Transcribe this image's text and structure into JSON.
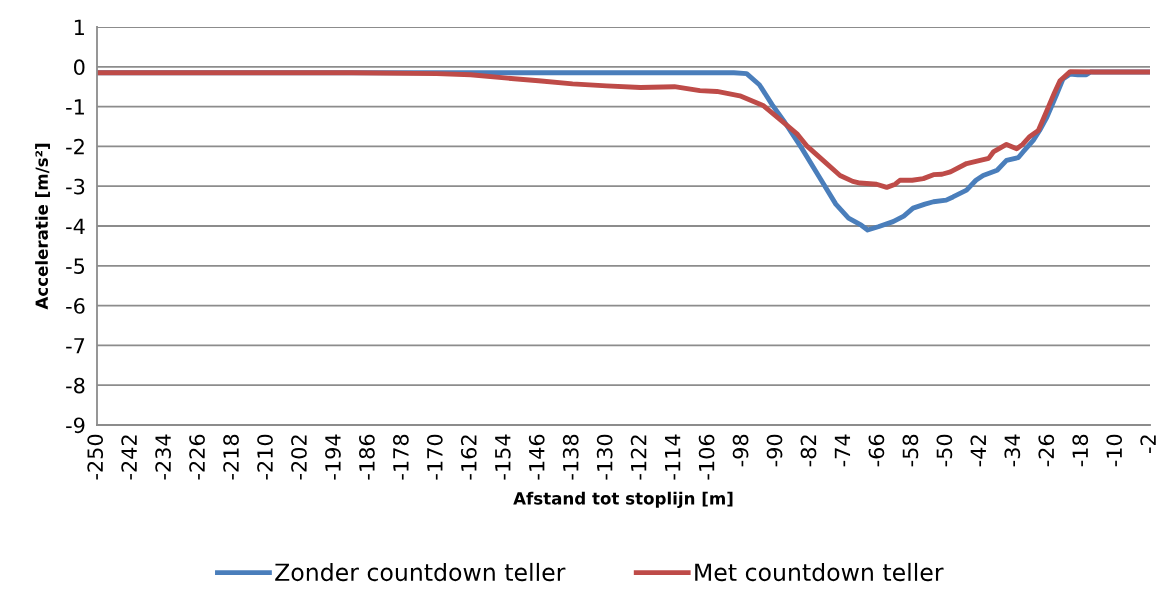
{
  "chart_data": {
    "type": "line",
    "xlabel": "Afstand tot stoplijn [m]",
    "ylabel": "Acceleratie [m/s²]",
    "xlim": [
      -250,
      -2
    ],
    "xticks": [
      -250,
      -242,
      -234,
      -226,
      -218,
      -210,
      -202,
      -194,
      -186,
      -178,
      -170,
      -162,
      -154,
      -146,
      -138,
      -130,
      -122,
      -114,
      -106,
      -98,
      -90,
      -82,
      -74,
      -66,
      -58,
      -50,
      -42,
      -34,
      -26,
      -18,
      -10,
      -2
    ],
    "ylim": [
      -9,
      1
    ],
    "yticks": [
      -9,
      -8,
      -7,
      -6,
      -5,
      -4,
      -3,
      -2,
      -1,
      0,
      1
    ],
    "grid": "y",
    "legend": "bottom",
    "marker": "none",
    "line_style": "solid",
    "series": [
      {
        "name": "Zonder countdown teller",
        "color": "#4a7ebb",
        "x": [
          -250,
          -150,
          -120,
          -100,
          -97,
          -94,
          -91,
          -88,
          -84,
          -80,
          -76,
          -73,
          -70,
          -68.5,
          -66,
          -62.5,
          -60,
          -57.8,
          -55,
          -53,
          -50,
          -48.4,
          -45.2,
          -43,
          -41.3,
          -38,
          -35.8,
          -33,
          -31.9,
          -29.5,
          -28,
          -26.3,
          -24,
          -22.5,
          -20.8,
          -19,
          -17,
          -16,
          -10,
          -2
        ],
        "values": [
          -0.15,
          -0.15,
          -0.15,
          -0.15,
          -0.17,
          -0.45,
          -0.95,
          -1.4,
          -2.05,
          -2.75,
          -3.45,
          -3.8,
          -3.98,
          -4.1,
          -4.02,
          -3.89,
          -3.75,
          -3.55,
          -3.45,
          -3.39,
          -3.35,
          -3.27,
          -3.1,
          -2.85,
          -2.73,
          -2.6,
          -2.35,
          -2.28,
          -2.14,
          -1.85,
          -1.6,
          -1.27,
          -0.7,
          -0.31,
          -0.18,
          -0.2,
          -0.2,
          -0.13,
          -0.13,
          -0.13
        ]
      },
      {
        "name": "Met countdown teller",
        "color": "#be4b48",
        "x": [
          -250,
          -220,
          -190,
          -170,
          -162,
          -154,
          -146,
          -138,
          -130,
          -122,
          -114,
          -108,
          -104,
          -98.6,
          -93,
          -88.4,
          -85,
          -82.9,
          -79,
          -75,
          -72,
          -70.3,
          -66.4,
          -64,
          -62,
          -60.9,
          -58,
          -55.4,
          -53,
          -51,
          -49,
          -45.2,
          -42,
          -40,
          -38.9,
          -35.8,
          -33.4,
          -32,
          -30.3,
          -28.3,
          -26.3,
          -24.5,
          -23.2,
          -20.8,
          -15,
          -10,
          -2
        ],
        "values": [
          -0.15,
          -0.15,
          -0.15,
          -0.17,
          -0.2,
          -0.28,
          -0.35,
          -0.43,
          -0.48,
          -0.52,
          -0.5,
          -0.6,
          -0.62,
          -0.73,
          -0.98,
          -1.39,
          -1.7,
          -1.98,
          -2.35,
          -2.73,
          -2.88,
          -2.92,
          -2.95,
          -3.03,
          -2.95,
          -2.85,
          -2.85,
          -2.81,
          -2.71,
          -2.7,
          -2.64,
          -2.43,
          -2.35,
          -2.3,
          -2.14,
          -1.95,
          -2.06,
          -1.95,
          -1.75,
          -1.6,
          -1.1,
          -0.65,
          -0.35,
          -0.12,
          -0.13,
          -0.13,
          -0.13
        ]
      }
    ]
  }
}
